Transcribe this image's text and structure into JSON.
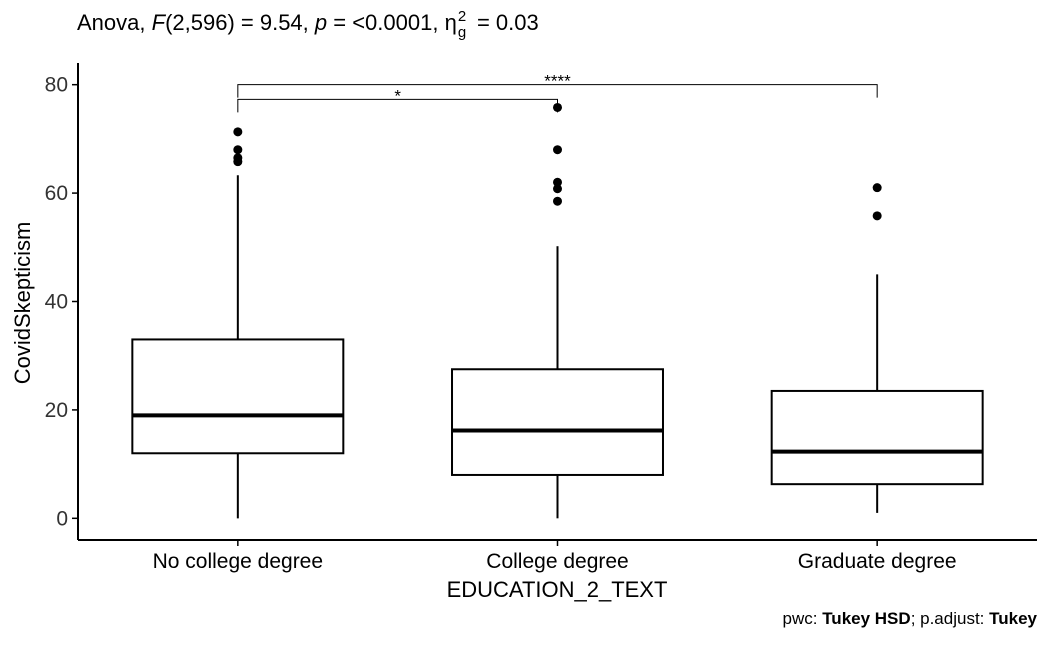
{
  "subtitle": {
    "prefix": "Anova, ",
    "stat_symbol": "F",
    "df": "(2,596) = 9.54, ",
    "p_symbol": "p",
    "p_value": " = <0.0001, ",
    "effect_symbol": "η",
    "effect_sup": "2",
    "effect_sub": "g",
    "effect_value": " = 0.03"
  },
  "caption": {
    "pwc_label": "pwc: ",
    "pwc_value": "Tukey HSD",
    "padjust_label": "; p.adjust: ",
    "padjust_value": "Tukey"
  },
  "chart_data": {
    "type": "box",
    "xlabel": "EDUCATION_2_TEXT",
    "ylabel": "CovidSkepticism",
    "ylim": [
      -4,
      84
    ],
    "yticks": [
      0,
      20,
      40,
      60,
      80
    ],
    "categories": [
      "No college degree",
      "College degree",
      "Graduate degree"
    ],
    "boxes": [
      {
        "category": "No college degree",
        "whisker_low": 0,
        "q1": 12,
        "median": 19,
        "q3": 33,
        "whisker_high": 63.3,
        "outliers": [
          65.8,
          66.5,
          68,
          71.3
        ]
      },
      {
        "category": "College degree",
        "whisker_low": 0,
        "q1": 8,
        "median": 16.2,
        "q3": 27.5,
        "whisker_high": 50.2,
        "outliers": [
          58.5,
          60.8,
          62,
          68,
          75.8
        ]
      },
      {
        "category": "Graduate degree",
        "whisker_low": 1,
        "q1": 6.3,
        "median": 12.3,
        "q3": 23.5,
        "whisker_high": 45,
        "outliers": [
          55.8,
          61
        ]
      }
    ],
    "comparisons": [
      {
        "group1": "No college degree",
        "group2": "College degree",
        "y": 77.3,
        "label": "*"
      },
      {
        "group1": "No college degree",
        "group2": "Graduate degree",
        "y": 80,
        "label": "****"
      }
    ]
  }
}
